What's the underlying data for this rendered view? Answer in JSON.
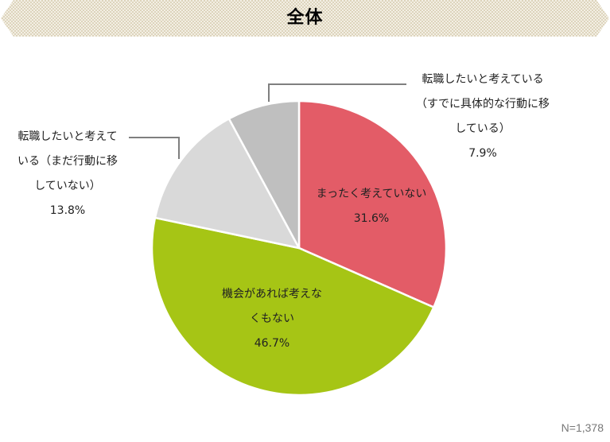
{
  "header": {
    "title": "全体",
    "banner_color": "#EDE7D6",
    "banner_pattern_color": "#DCD3BA"
  },
  "chart_data": {
    "type": "pie",
    "title": "全体",
    "start_angle_deg": 0,
    "direction": "clockwise",
    "slices": [
      {
        "label": "まったく考えていない",
        "value": 31.6,
        "display_value": "31.6%",
        "color": "#E35C67",
        "label_lines": [
          "まったく考えていない",
          "31.6%"
        ],
        "label_position": "inside"
      },
      {
        "label": "機会があれば考えなくもない",
        "value": 46.7,
        "display_value": "46.7%",
        "color": "#A6C515",
        "label_lines": [
          "機会があれば考えな",
          "くもない",
          "46.7%"
        ],
        "label_position": "inside"
      },
      {
        "label": "転職したいと考えている（まだ行動に移していない）",
        "value": 13.8,
        "display_value": "13.8%",
        "color": "#D9D9D9",
        "label_lines": [
          "転職したいと考えて",
          "いる（まだ行動に移",
          "していない）",
          "13.8%"
        ],
        "label_position": "outside-left"
      },
      {
        "label": "転職したいと考えている（すでに具体的な行動に移している）",
        "value": 7.9,
        "display_value": "7.9%",
        "color": "#BFBFBF",
        "label_lines": [
          "転職したいと考えている",
          "（すでに具体的な行動に移",
          "している）",
          "7.9%"
        ],
        "label_position": "outside-right"
      }
    ],
    "sample_size": "N=1,378",
    "legend": "none"
  },
  "footer": {
    "sample_size": "N=1,378"
  }
}
